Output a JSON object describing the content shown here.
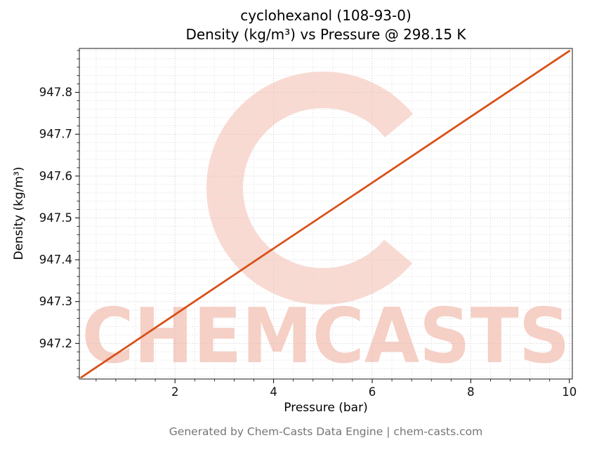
{
  "title": {
    "line1": "cyclohexanol (108-93-0)",
    "line2": "Density (kg/m³) vs Pressure @ 298.15 K"
  },
  "footer": "Generated by Chem-Casts Data Engine | chem-casts.com",
  "watermark": {
    "text": "CHEMCASTS",
    "text_color": "#f6cfc5",
    "logo_color": "#f8d6cd"
  },
  "chart_data": {
    "type": "line",
    "title": "cyclohexanol (108-93-0) — Density (kg/m³) vs Pressure @ 298.15 K",
    "xlabel": "Pressure (bar)",
    "ylabel": "Density (kg/m³)",
    "x": [
      0.1,
      2,
      4,
      6,
      8,
      10
    ],
    "y": [
      947.119,
      947.269,
      947.427,
      947.584,
      947.742,
      947.899
    ],
    "xlim": [
      0.06,
      10.06
    ],
    "ylim": [
      947.115,
      947.905
    ],
    "xticks": [
      2,
      4,
      6,
      8,
      10
    ],
    "yticks": [
      947.2,
      947.3,
      947.4,
      947.5,
      947.6,
      947.7,
      947.8
    ],
    "x_minor_step": 0.4,
    "y_minor_step": 0.02,
    "line_color": "#d85119",
    "grid": "dotted",
    "grid_major_color": "#c6c6c6",
    "grid_minor_color": "#dadada",
    "legend": "none"
  }
}
